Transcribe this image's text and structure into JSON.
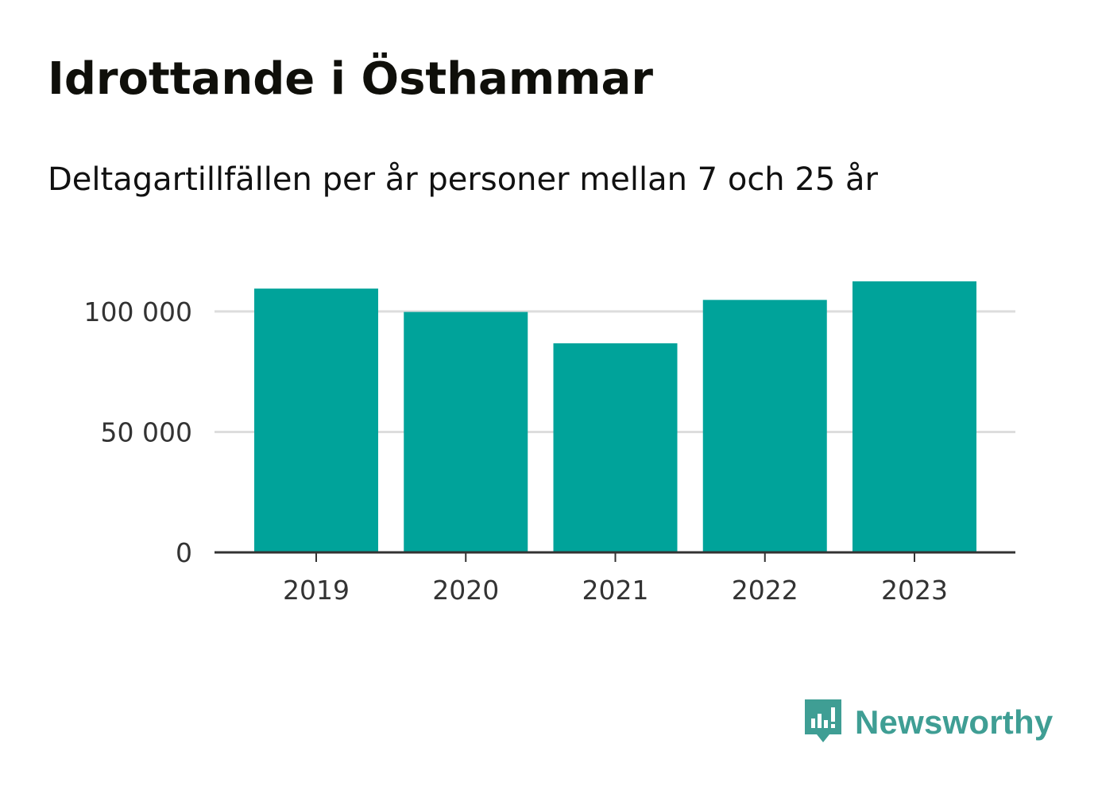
{
  "header": {
    "title": "Idrottande i Östhammar",
    "subtitle": "Deltagartillfällen per år personer mellan 7 och 25 år"
  },
  "chart_data": {
    "type": "bar",
    "categories": [
      "2019",
      "2020",
      "2021",
      "2022",
      "2023"
    ],
    "values": [
      109500,
      99800,
      86800,
      104800,
      112500
    ],
    "ylim": [
      0,
      112500
    ],
    "yticks": [
      0,
      50000,
      100000
    ],
    "ytick_labels": [
      "0",
      "50 000",
      "100 000"
    ],
    "grid": true,
    "bar_color": "#00a39a",
    "title": "",
    "xlabel": "",
    "ylabel": ""
  },
  "branding": {
    "logo_text": "Newsworthy",
    "logo_icon": "bar-chart-speech-bubble-icon",
    "logo_color": "#3f9e94"
  }
}
